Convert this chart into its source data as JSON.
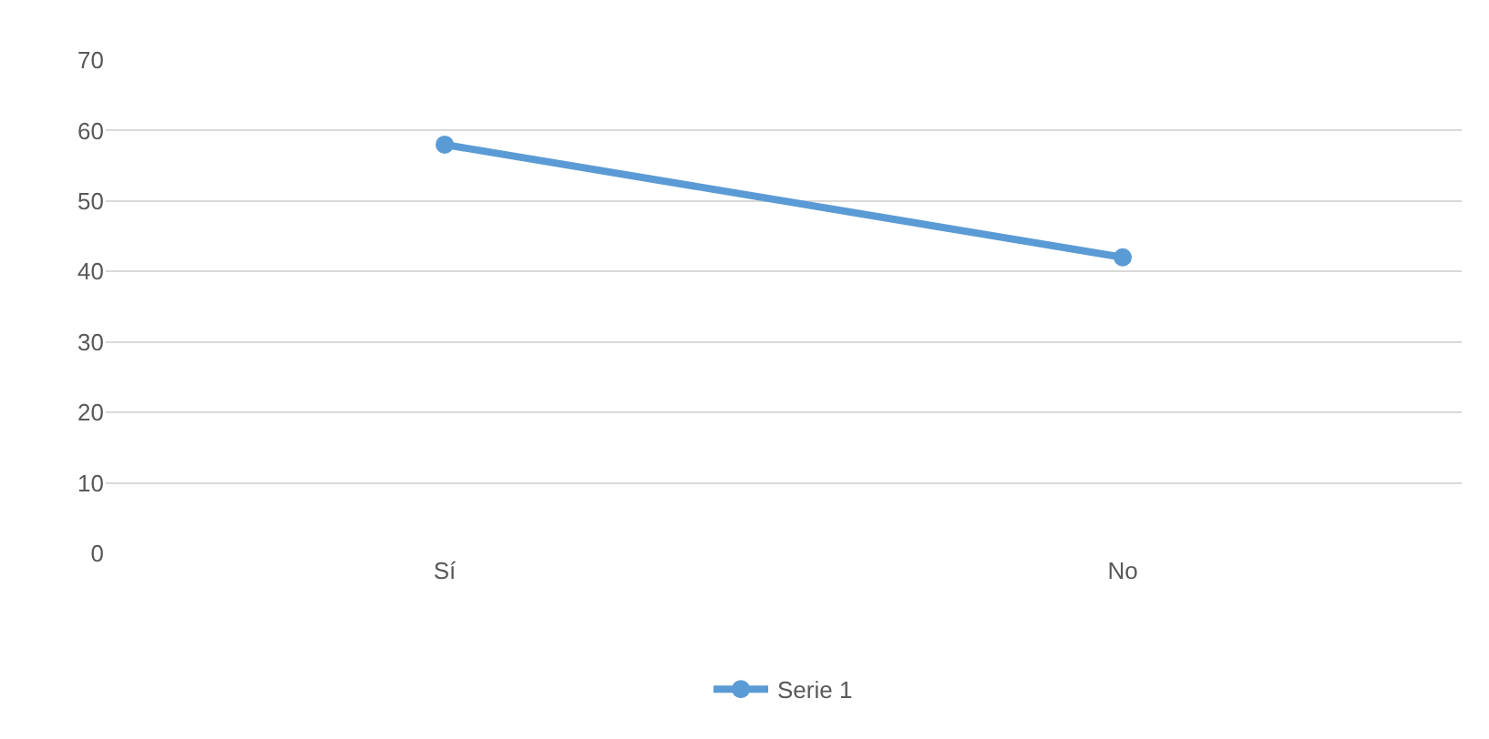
{
  "chart_data": {
    "type": "line",
    "categories": [
      "Sí",
      "No"
    ],
    "series": [
      {
        "name": "Serie 1",
        "color": "#5b9bd5",
        "values": [
          58,
          42
        ]
      }
    ],
    "ylim": [
      0,
      70
    ],
    "yticks": [
      0,
      10,
      20,
      30,
      40,
      50,
      60,
      70
    ],
    "grid": "y",
    "legend": "bottom",
    "marker": "circle",
    "line_style": "solid"
  }
}
